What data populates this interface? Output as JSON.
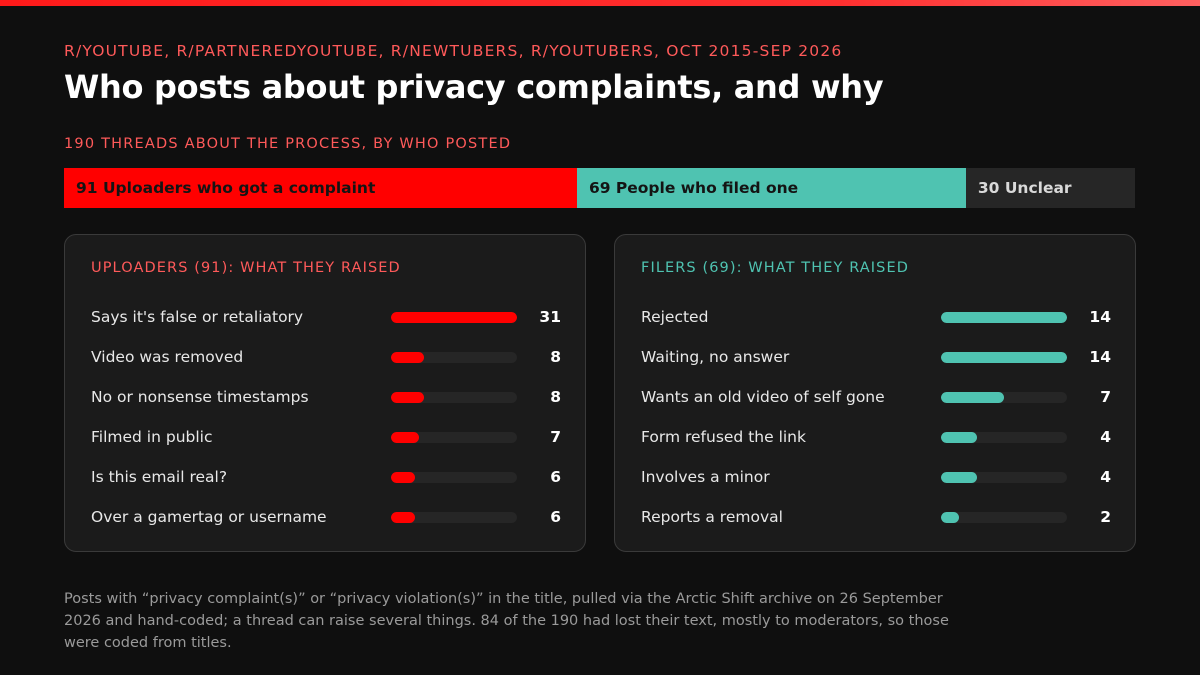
{
  "header": {
    "kicker": "R/YOUTUBE, R/PARTNEREDYOUTUBE, R/NEWTUBERS, R/YOUTUBERS, OCT 2015-SEP 2026",
    "title": "Who posts about privacy complaints, and why"
  },
  "colors": {
    "accent_red": "#ff0000",
    "accent_teal": "#4fc3b1",
    "unclear_gray": "#262626",
    "background": "#0f0f0f"
  },
  "chart_data": [
    {
      "type": "bar",
      "orientation": "stacked-horizontal",
      "title": "190 THREADS ABOUT THE PROCESS, BY WHO POSTED",
      "total": 190,
      "segments": [
        {
          "label": "91 Uploaders who got a complaint",
          "value": 91,
          "color": "#ff0000"
        },
        {
          "label": "69 People who filed one",
          "value": 69,
          "color": "#4fc3b1"
        },
        {
          "label": "30 Unclear",
          "value": 30,
          "color": "#262626"
        }
      ]
    },
    {
      "type": "bar",
      "orientation": "horizontal",
      "title": "UPLOADERS (91): WHAT THEY RAISED",
      "scale_max": 31,
      "categories": [
        "Says it's false or retaliatory",
        "Video was removed",
        "No or nonsense timestamps",
        "Filmed in public",
        "Is this email real?",
        "Over a gamertag or username"
      ],
      "values": [
        31,
        8,
        8,
        7,
        6,
        6
      ],
      "value_labels": [
        "31",
        "8",
        "8",
        "7",
        "6",
        "6"
      ],
      "color": "#ff0000"
    },
    {
      "type": "bar",
      "orientation": "horizontal",
      "title": "FILERS (69): WHAT THEY RAISED",
      "scale_max": 14,
      "categories": [
        "Rejected",
        "Waiting, no answer",
        "Wants an old video of self gone",
        "Form refused the link",
        "Involves a minor",
        "Reports a removal"
      ],
      "values": [
        14,
        14,
        7,
        4,
        4,
        2
      ],
      "value_labels": [
        "14",
        "14",
        "7",
        "4",
        "4",
        "2"
      ],
      "color": "#4fc3b1"
    }
  ],
  "footnote": "Posts with “privacy complaint(s)” or “privacy violation(s)” in the title, pulled via the Arctic Shift archive on 26 September 2026 and hand-coded; a thread can raise several things. 84 of the 190 had lost their text, mostly to moderators, so those were coded from titles."
}
